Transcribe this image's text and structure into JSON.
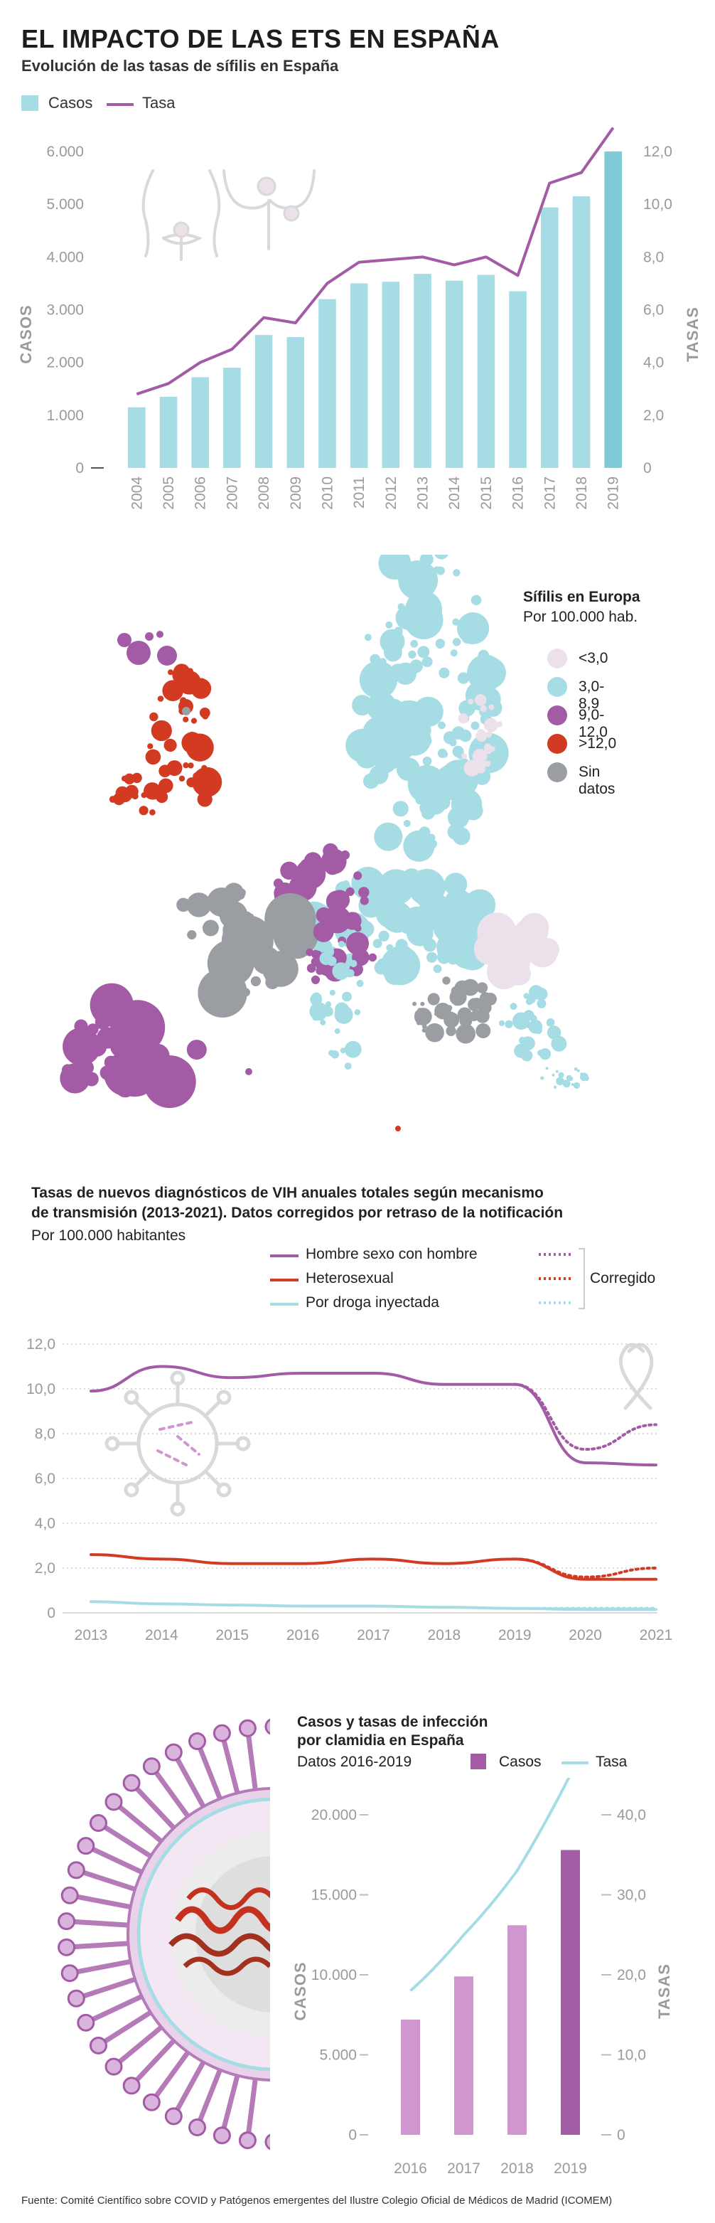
{
  "header": {
    "title": "EL IMPACTO DE LAS ETS EN ESPAÑA",
    "subtitle": "Evolución de las tasas de sífilis en España"
  },
  "colors": {
    "cyan": "#a6dce4",
    "cyan_dark": "#7fcad7",
    "purple": "#a35ba6",
    "red": "#d23a22",
    "gray": "#9a9ea3",
    "pale": "#ece0ea",
    "pink_bar": "#cf96cf"
  },
  "syphilis": {
    "legend": {
      "cases": "Casos",
      "rate": "Tasa"
    },
    "ylabel_left": "CASOS",
    "ylabel_right": "TASAS",
    "left_ticks": [
      "0",
      "1.000",
      "2.000",
      "3.000",
      "4.000",
      "5.000",
      "6.000"
    ],
    "right_ticks": [
      "0",
      "2,0",
      "4,0",
      "6,0",
      "8,0",
      "10,0",
      "12,0"
    ]
  },
  "europe_map": {
    "title": "Sífilis en Europa",
    "subtitle": "Por 100.000 hab.",
    "legend": [
      {
        "label": "<3,0",
        "color": "#ece0ea"
      },
      {
        "label": "3,0-8,9",
        "color": "#a6dce4"
      },
      {
        "label": "9,0-12,0",
        "color": "#a35ba6"
      },
      {
        "label": ">12,0",
        "color": "#d23a22"
      },
      {
        "label": "Sin datos",
        "color": "#9a9ea3"
      }
    ]
  },
  "vih": {
    "title_line1": "Tasas de nuevos diagnósticos de VIH anuales totales según mecanismo",
    "title_line2": "de transmisión (2013-2021). Datos corregidos por retraso de la notificación",
    "unit": "Por 100.000 habitantes",
    "legend": {
      "hsh": "Hombre sexo con hombre",
      "hetero": "Heterosexual",
      "droga": "Por droga inyectada",
      "corrected": "Corregido"
    },
    "y_ticks": [
      "0",
      "2,0",
      "4,0",
      "6,0",
      "8,0",
      "10,0",
      "12,0"
    ]
  },
  "clamidia": {
    "title_line1": "Casos y tasas de infección",
    "title_line2": "por clamidia en España",
    "period": "Datos 2016-2019",
    "legend": {
      "cases": "Casos",
      "rate": "Tasa"
    },
    "ylabel_left": "CASOS",
    "ylabel_right": "TASAS",
    "left_ticks": [
      "0",
      "5.000",
      "10.000",
      "15.000",
      "20.000"
    ],
    "right_ticks": [
      "0",
      "10,0",
      "20,0",
      "30,0",
      "40,0"
    ]
  },
  "source": "Fuente: Comité Científico sobre COVID y Patógenos emergentes del Ilustre Colegio Oficial de Médicos de Madrid (ICOMEM)",
  "chart_data": [
    {
      "type": "bar",
      "title": "Evolución de las tasas de sífilis en España",
      "categories": [
        "2004",
        "2005",
        "2006",
        "2007",
        "2008",
        "2009",
        "2010",
        "2011",
        "2012",
        "2013",
        "2014",
        "2015",
        "2016",
        "2017",
        "2018",
        "2019"
      ],
      "series": [
        {
          "name": "Casos",
          "axis": "left",
          "values": [
            1150,
            1350,
            1720,
            1900,
            2520,
            2480,
            3200,
            3500,
            3530,
            3680,
            3550,
            3660,
            3350,
            4940,
            5150,
            6000
          ]
        },
        {
          "name": "Tasa",
          "axis": "right",
          "type": "line",
          "values": [
            2.8,
            3.2,
            4.0,
            4.5,
            5.7,
            5.5,
            7.0,
            7.8,
            7.9,
            8.0,
            7.7,
            8.0,
            7.3,
            10.8,
            11.2,
            12.9
          ]
        }
      ],
      "ylabel": "CASOS",
      "y2label": "TASAS",
      "ylim": [
        0,
        6000
      ],
      "y2lim": [
        0,
        12
      ],
      "legend_position": "top-left"
    },
    {
      "type": "line",
      "title": "Tasas de nuevos diagnósticos de VIH anuales totales según mecanismo de transmisión (2013-2021). Datos corregidos por retraso de la notificación",
      "x": [
        "2013",
        "2014",
        "2015",
        "2016",
        "2017",
        "2018",
        "2019",
        "2020",
        "2021"
      ],
      "series": [
        {
          "name": "Hombre sexo con hombre",
          "values": [
            9.9,
            11.0,
            10.5,
            10.7,
            10.7,
            10.2,
            10.2,
            6.7,
            6.6
          ]
        },
        {
          "name": "Hombre sexo con hombre (Corregido)",
          "values": [
            null,
            null,
            null,
            null,
            null,
            null,
            10.2,
            7.3,
            8.4
          ]
        },
        {
          "name": "Heterosexual",
          "values": [
            2.6,
            2.4,
            2.2,
            2.2,
            2.4,
            2.2,
            2.4,
            1.5,
            1.5
          ]
        },
        {
          "name": "Heterosexual (Corregido)",
          "values": [
            null,
            null,
            null,
            null,
            null,
            null,
            2.4,
            1.6,
            2.0
          ]
        },
        {
          "name": "Por droga inyectada",
          "values": [
            0.5,
            0.4,
            0.35,
            0.3,
            0.3,
            0.25,
            0.2,
            0.15,
            0.15
          ]
        },
        {
          "name": "Por droga inyectada (Corregido)",
          "values": [
            null,
            null,
            null,
            null,
            null,
            null,
            0.2,
            0.2,
            0.2
          ]
        }
      ],
      "ylim": [
        0,
        12
      ],
      "legend_position": "top"
    },
    {
      "type": "bar",
      "title": "Casos y tasas de infección por clamidia en España",
      "categories": [
        "2016",
        "2017",
        "2018",
        "2019"
      ],
      "series": [
        {
          "name": "Casos",
          "axis": "left",
          "values": [
            7200,
            9900,
            13100,
            17800
          ]
        },
        {
          "name": "Tasa",
          "axis": "right",
          "type": "line",
          "values": [
            18.0,
            25.0,
            33.0,
            45.0
          ]
        }
      ],
      "ylabel": "CASOS",
      "y2label": "TASAS",
      "ylim": [
        0,
        20000
      ],
      "y2lim": [
        0,
        40
      ],
      "legend_position": "top-right"
    }
  ]
}
